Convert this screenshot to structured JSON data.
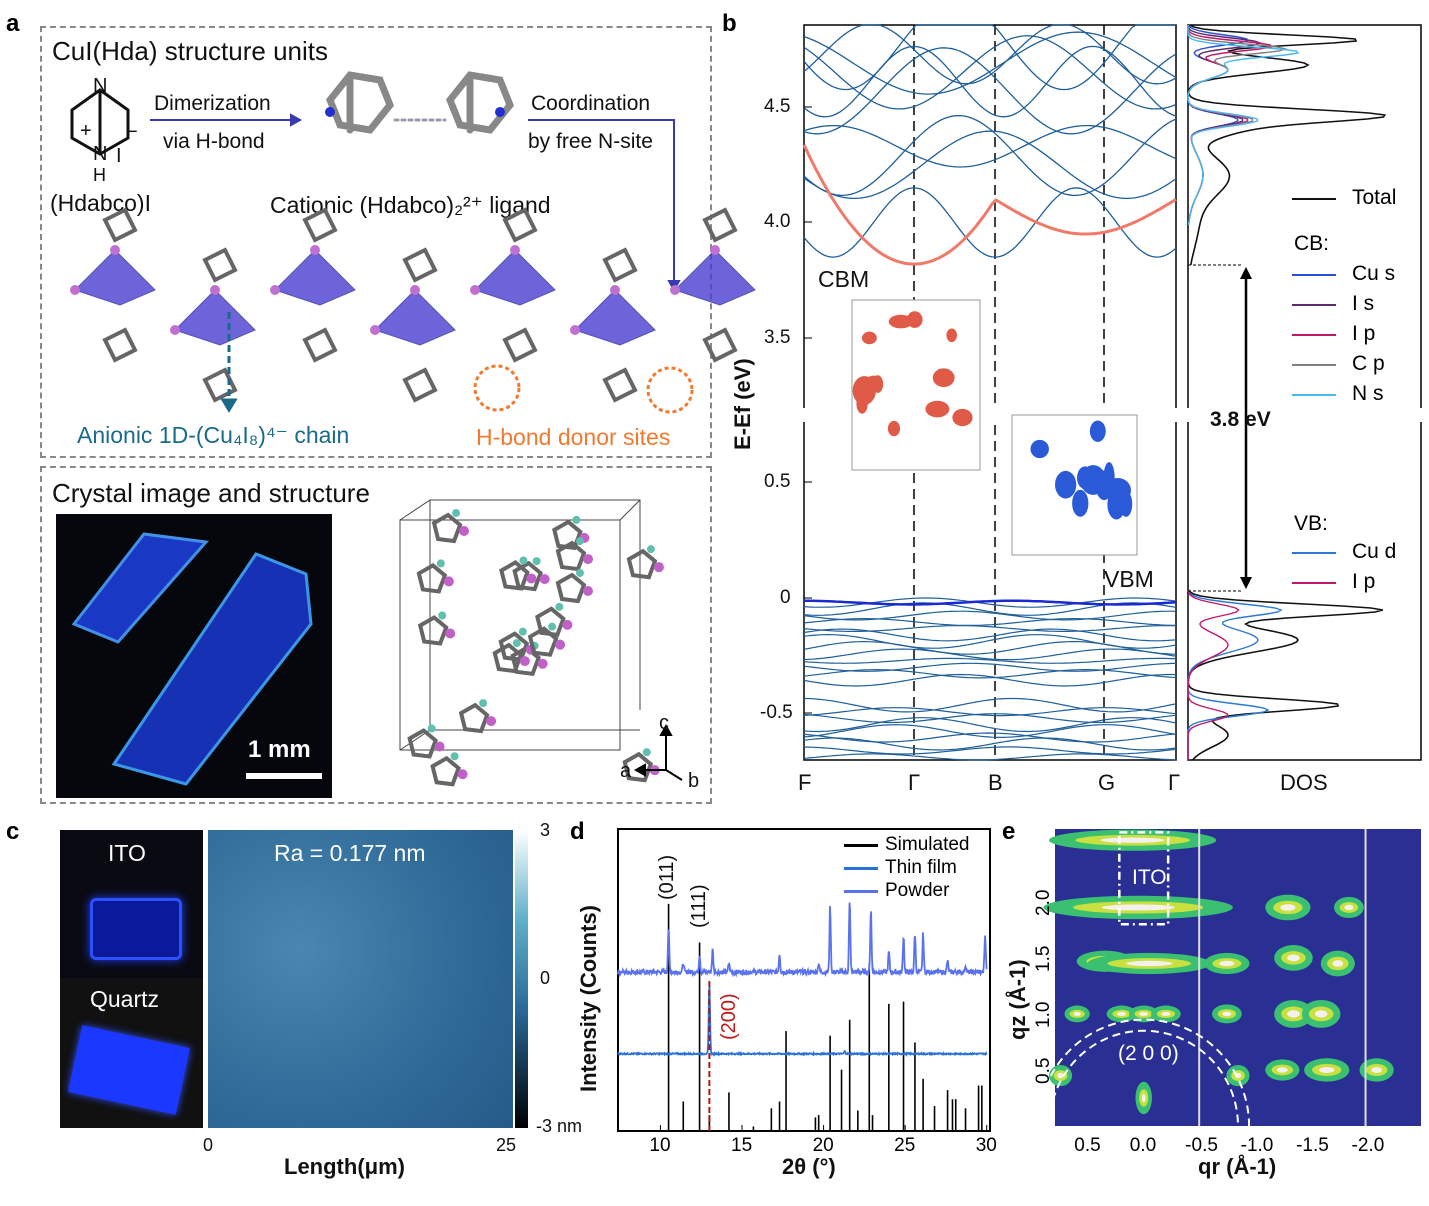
{
  "panel_labels": {
    "a": "a",
    "b": "b",
    "c": "c",
    "d": "d",
    "e": "e"
  },
  "panel_a": {
    "title": "CuI(Hda) structure units",
    "dimerization": "Dimerization",
    "via_hbond": "via H-bond",
    "coordination": "Coordination",
    "free_nsite": "by free N-site",
    "salt_label": "(Hdabco)I",
    "ligand_label": "Cationic (Hdabco)₂²⁺ ligand",
    "chain_label": "Anionic 1D-(Cu₄I₈)⁴⁻ chain",
    "donor_label": "H-bond donor sites",
    "crystal_title": "Crystal image and structure",
    "scale_bar": "1 mm",
    "axes": {
      "c": "c",
      "a": "a",
      "b": "b"
    },
    "atoms": {
      "N": "N",
      "H": "H",
      "I": "I",
      "plus": "+",
      "minus": "−"
    }
  },
  "panel_b": {
    "ylabel": "E-Ef (eV)",
    "yticks_upper": [
      "4.5",
      "4.0",
      "3.5"
    ],
    "yticks_lower": [
      "0.5",
      "0",
      "-0.5"
    ],
    "kpoints": [
      "F",
      "Γ",
      "B",
      "G",
      "Γ"
    ],
    "cbm": "CBM",
    "vbm": "VBM",
    "gap": "3.8 eV",
    "dos_xlabel": "DOS",
    "legend_total": "Total",
    "cb_title": "CB:",
    "cb_items": [
      {
        "label": "Cu s",
        "color": "#2a4fd6"
      },
      {
        "label": "I s",
        "color": "#5a2a6a"
      },
      {
        "label": "I p",
        "color": "#c0186a"
      },
      {
        "label": "C p",
        "color": "#808080"
      },
      {
        "label": "N s",
        "color": "#4ab8f0"
      }
    ],
    "vb_title": "VB:",
    "vb_items": [
      {
        "label": "Cu d",
        "color": "#2a7ad6"
      },
      {
        "label": "I p",
        "color": "#c0186a"
      }
    ],
    "band_color": "#1f5f9a",
    "cbm_band_color": "#f07a6a",
    "vbm_band_color": "#1a2ad0"
  },
  "panel_c": {
    "ito": "ITO",
    "quartz": "Quartz",
    "ra": "Ra = 0.177 nm",
    "cbar_ticks": [
      "3",
      "0",
      "-3 nm"
    ],
    "xticks": [
      "0",
      "25"
    ],
    "xlabel": "Length(μm)"
  },
  "chart_data": [
    {
      "type": "line",
      "panel": "d",
      "xlabel": "2θ (°)",
      "ylabel": "Intensity (Counts)",
      "xlim": [
        7.4,
        30.2
      ],
      "ylim": [
        0,
        133
      ],
      "xticks": [
        "10",
        "15",
        "20",
        "25",
        "30"
      ],
      "legend": [
        "Simulated",
        "Thin film",
        "Powder"
      ],
      "legend_position": "top-right",
      "colors": {
        "Simulated": "#000000",
        "Thin film": "#2a72d8",
        "Powder": "#5a72ee"
      },
      "annotations": [
        "(011)",
        "(111)",
        "(200)"
      ],
      "simulated_peaks": [
        [
          10.5,
          100
        ],
        [
          11.4,
          13
        ],
        [
          12.4,
          83
        ],
        [
          13.0,
          7
        ],
        [
          14.2,
          17
        ],
        [
          15.7,
          2
        ],
        [
          16.8,
          10
        ],
        [
          17.3,
          13
        ],
        [
          17.7,
          44
        ],
        [
          19.5,
          6
        ],
        [
          19.7,
          7
        ],
        [
          20.4,
          42
        ],
        [
          21.1,
          27
        ],
        [
          21.6,
          49
        ],
        [
          22.1,
          9
        ],
        [
          22.8,
          74
        ],
        [
          23.0,
          7
        ],
        [
          24.0,
          56
        ],
        [
          24.9,
          57
        ],
        [
          25.6,
          39
        ],
        [
          26.1,
          23
        ],
        [
          26.8,
          11
        ],
        [
          27.6,
          18
        ],
        [
          27.9,
          14
        ],
        [
          28.1,
          14
        ],
        [
          28.7,
          10
        ],
        [
          29.5,
          20
        ],
        [
          29.7,
          20
        ]
      ],
      "thin_film": {
        "offset": 34,
        "peaks": [
          [
            13.0,
            31
          ],
          [
            21.3,
            1
          ]
        ]
      },
      "powder": {
        "offset": 70,
        "peaks": [
          [
            10.5,
            19
          ],
          [
            11.4,
            4
          ],
          [
            12.4,
            8
          ],
          [
            13.2,
            10
          ],
          [
            14.2,
            4
          ],
          [
            17.3,
            8
          ],
          [
            19.7,
            4
          ],
          [
            20.4,
            29
          ],
          [
            21.6,
            31
          ],
          [
            22.9,
            28
          ],
          [
            24.0,
            9
          ],
          [
            24.9,
            16
          ],
          [
            25.6,
            17
          ],
          [
            26.1,
            17
          ],
          [
            27.6,
            5
          ],
          [
            28.7,
            3
          ],
          [
            29.9,
            16
          ]
        ]
      }
    },
    {
      "type": "heatmap",
      "panel": "e",
      "xlabel": "qr (Å-1)",
      "ylabel": "qz (Å-1)",
      "xlim": [
        0.8,
        -2.5
      ],
      "ylim": [
        0,
        2.65
      ],
      "xticks": [
        "0.5",
        "0.0",
        "-0.5",
        "-1.0",
        "-1.5",
        "-2.0"
      ],
      "yticks": [
        "0.5",
        "1.0",
        "1.5",
        "2.0"
      ],
      "annotations": [
        "ITO",
        "(2 0 0)"
      ],
      "background": "#2a2f94"
    }
  ]
}
